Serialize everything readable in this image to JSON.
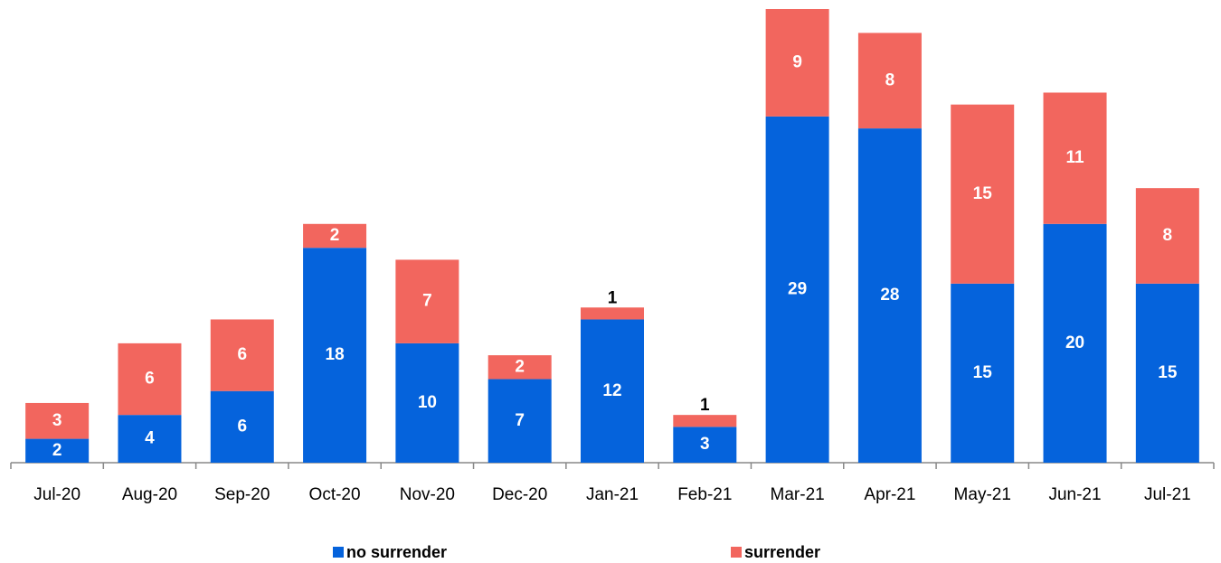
{
  "chart_data": {
    "type": "stacked_bar",
    "categories": [
      "Jul-20",
      "Aug-20",
      "Sep-20",
      "Oct-20",
      "Nov-20",
      "Dec-20",
      "Jan-21",
      "Feb-21",
      "Mar-21",
      "Apr-21",
      "May-21",
      "Jun-21",
      "Jul-21"
    ],
    "series": [
      {
        "name": "no surrender",
        "color": "#0563dc",
        "values": [
          2,
          4,
          6,
          18,
          10,
          7,
          12,
          3,
          29,
          28,
          15,
          20,
          15
        ]
      },
      {
        "name": "surrender",
        "color": "#f2665e",
        "values": [
          3,
          6,
          6,
          2,
          7,
          2,
          1,
          1,
          9,
          8,
          15,
          11,
          8
        ]
      }
    ],
    "legend": "bottom"
  }
}
